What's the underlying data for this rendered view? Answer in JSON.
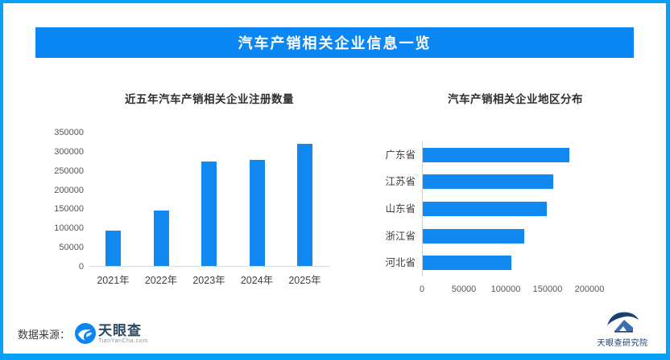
{
  "frame": {
    "border_color": "#09a0f7",
    "background": "#ffffff"
  },
  "banner": {
    "title": "汽车产销相关企业信息一览",
    "bg": "#0b86f5",
    "text_color": "#ffffff"
  },
  "chart_data": [
    {
      "type": "bar",
      "orientation": "vertical",
      "title": "近五年汽车产销相关企业注册数量",
      "categories": [
        "2021年",
        "2022年",
        "2023年",
        "2024年",
        "2025年"
      ],
      "values": [
        93000,
        145000,
        272000,
        277000,
        318000
      ],
      "xlabel": "",
      "ylabel": "",
      "ylim": [
        0,
        350000
      ],
      "yticks": [
        0,
        50000,
        100000,
        150000,
        200000,
        250000,
        300000,
        350000
      ],
      "grid": false,
      "legend": "none",
      "bar_color": "#1189f0"
    },
    {
      "type": "bar",
      "orientation": "horizontal",
      "title": "汽车产销相关企业地区分布",
      "categories": [
        "广东省",
        "江苏省",
        "山东省",
        "浙江省",
        "河北省"
      ],
      "values": [
        175000,
        156000,
        148000,
        121000,
        106000
      ],
      "xlabel": "",
      "ylabel": "",
      "xlim": [
        0,
        235000
      ],
      "xticks": [
        0,
        50000,
        100000,
        150000,
        200000
      ],
      "grid": false,
      "legend": "none",
      "bar_color": "#1189f0"
    }
  ],
  "footer": {
    "source_label": "数据来源：",
    "logo_text": "天眼查",
    "logo_subtext": "TianYanCha.com",
    "brand_blue": "#0b86f5",
    "logo_text_color": "#2b4a63"
  },
  "institute": {
    "name": "天眼查研究院",
    "color": "#1b3e6e",
    "icon_light_blue": "#3d6fb4"
  }
}
